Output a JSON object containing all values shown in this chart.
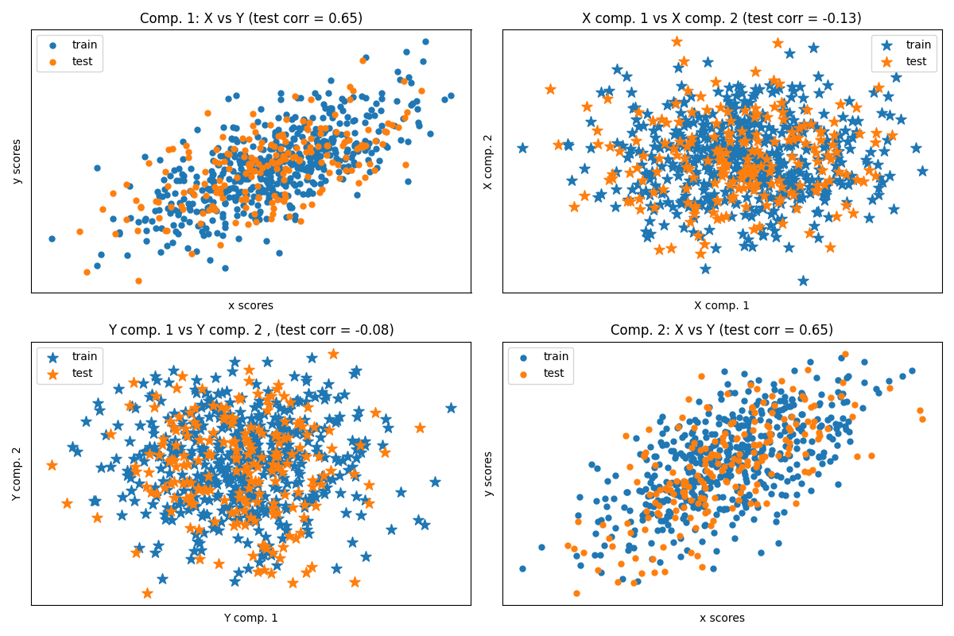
{
  "n": 500,
  "n_test": 200,
  "seed": 0,
  "n_components": 2,
  "titles": [
    "Comp. 1: X vs Y (test corr = 0.65)",
    "X comp. 1 vs X comp. 2 (test corr = -0.13)",
    "Y comp. 1 vs Y comp. 2 , (test corr = -0.08)",
    "Comp. 2: X vs Y (test corr = 0.65)"
  ],
  "xlabels": [
    "x scores",
    "X comp. 1",
    "Y comp. 1",
    "x scores"
  ],
  "ylabels": [
    "y scores",
    "X comp. 2",
    "Y comp. 2",
    "y scores"
  ],
  "train_color": "#1f77b4",
  "test_color": "#ff7f0e",
  "marker_circle": "o",
  "marker_star": "*",
  "marker_size_circle": 25,
  "marker_size_star": 100,
  "figsize": [
    12.0,
    8.0
  ],
  "dpi": 100,
  "background_color": "#ffffff",
  "legend_locs": [
    "upper left",
    "upper right",
    "upper left",
    "upper left"
  ]
}
